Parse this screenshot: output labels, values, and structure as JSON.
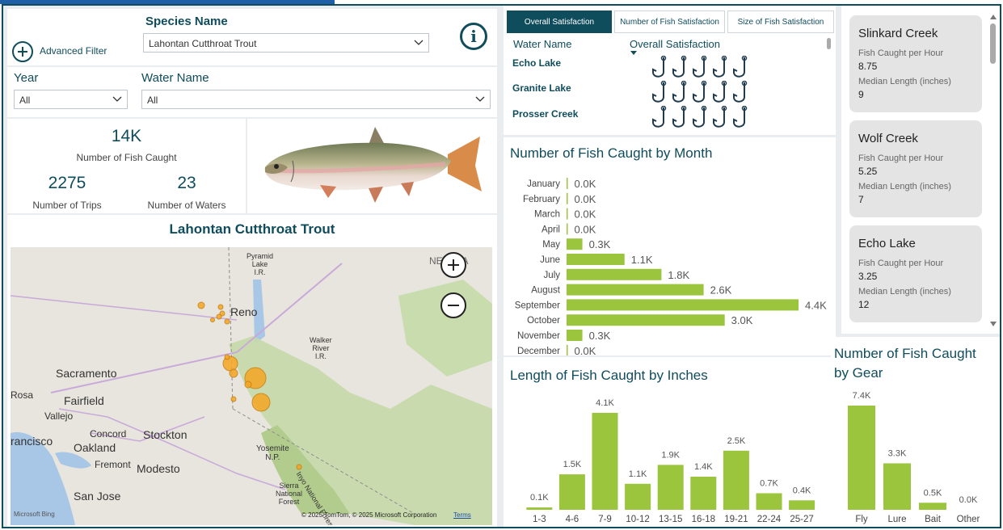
{
  "filters": {
    "advanced_filter_label": "Advanced Filter",
    "species_label": "Species Name",
    "species_value": "Lahontan Cutthroat Trout",
    "year_label": "Year",
    "year_value": "All",
    "water_label": "Water Name",
    "water_value": "All",
    "info_glyph": "i"
  },
  "kpis": {
    "fish_caught_value": "14K",
    "fish_caught_label": "Number of Fish Caught",
    "trips_value": "2275",
    "trips_label": "Number of Trips",
    "waters_value": "23",
    "waters_label": "Number of Waters"
  },
  "map": {
    "title": "Lahontan Cutthroat Trout",
    "labels": {
      "pyramid": "Pyramid\nLake\nI.R.",
      "reno": "Reno",
      "walker": "Walker\nRiver\nI.R.",
      "sacramento": "Sacramento",
      "fairfield": "Fairfield",
      "rosa": "Rosa",
      "vallejo": "Vallejo",
      "concord": "Concord",
      "stockton": "Stockton",
      "francisco": "rancisco",
      "oakland": "Oakland",
      "fremont": "Fremont",
      "modesto": "Modesto",
      "san_jose": "San Jose",
      "yosemite": "Yosemite\nN.P.",
      "inyo": "Inyo National Forest",
      "sierra": "Sierra\nNational\nForest",
      "nevada": "NEVADA"
    },
    "attribution": "© 2025 TomTom, © 2025 Microsoft Corporation",
    "terms": "Terms",
    "bing": "Microsoft Bing"
  },
  "tabs": [
    {
      "label": "Overall Satisfaction",
      "active": true
    },
    {
      "label": "Number of Fish Satisfaction",
      "active": false
    },
    {
      "label": "Size of Fish Satisfaction",
      "active": false
    }
  ],
  "satisfaction": {
    "col_water": "Water Name",
    "col_overall": "Overall Satisfaction",
    "rows": [
      {
        "water": "Echo Lake",
        "hooks": 5
      },
      {
        "water": "Granite Lake",
        "hooks": 5
      },
      {
        "water": "Prosser Creek",
        "hooks": 5
      }
    ]
  },
  "cards": [
    {
      "title": "Slinkard Creek",
      "rate_label": "Fish Caught per Hour",
      "rate": "8.75",
      "len_label": "Median Length (inches)",
      "len": "9"
    },
    {
      "title": "Wolf Creek",
      "rate_label": "Fish Caught per Hour",
      "rate": "5.25",
      "len_label": "Median Length (inches)",
      "len": "7"
    },
    {
      "title": "Echo Lake",
      "rate_label": "Fish Caught per Hour",
      "rate": "3.25",
      "len_label": "Median Length (inches)",
      "len": "12"
    }
  ],
  "colors": {
    "teal": "#0f4c5c",
    "bar": "#9bc53d",
    "dot": "#f5a623"
  },
  "chart_data": [
    {
      "type": "bar",
      "orientation": "horizontal",
      "title": "Number of Fish Caught by Month",
      "categories": [
        "January",
        "February",
        "March",
        "April",
        "May",
        "June",
        "July",
        "August",
        "September",
        "October",
        "November",
        "December"
      ],
      "values": [
        0,
        0,
        0,
        0,
        300,
        1100,
        1800,
        2600,
        4400,
        3000,
        300,
        0
      ],
      "data_labels": [
        "0.0K",
        "0.0K",
        "0.0K",
        "0.0K",
        "0.3K",
        "1.1K",
        "1.8K",
        "2.6K",
        "4.4K",
        "3.0K",
        "0.3K",
        "0.0K"
      ]
    },
    {
      "type": "bar",
      "title": "Length of Fish Caught by Inches",
      "categories": [
        "1-3",
        "4-6",
        "7-9",
        "10-12",
        "13-15",
        "16-18",
        "19-21",
        "22-24",
        "25-27"
      ],
      "values": [
        100,
        1500,
        4100,
        1100,
        1900,
        1400,
        2500,
        700,
        400
      ],
      "data_labels": [
        "0.1K",
        "1.5K",
        "4.1K",
        "1.1K",
        "1.9K",
        "1.4K",
        "2.5K",
        "0.7K",
        "0.4K"
      ]
    },
    {
      "type": "bar",
      "title": "Number of Fish Caught by Gear",
      "categories": [
        "Fly",
        "Lure",
        "Bait",
        "Other"
      ],
      "values": [
        7400,
        3300,
        500,
        0
      ],
      "data_labels": [
        "7.4K",
        "3.3K",
        "0.5K",
        "0.0K"
      ]
    }
  ]
}
